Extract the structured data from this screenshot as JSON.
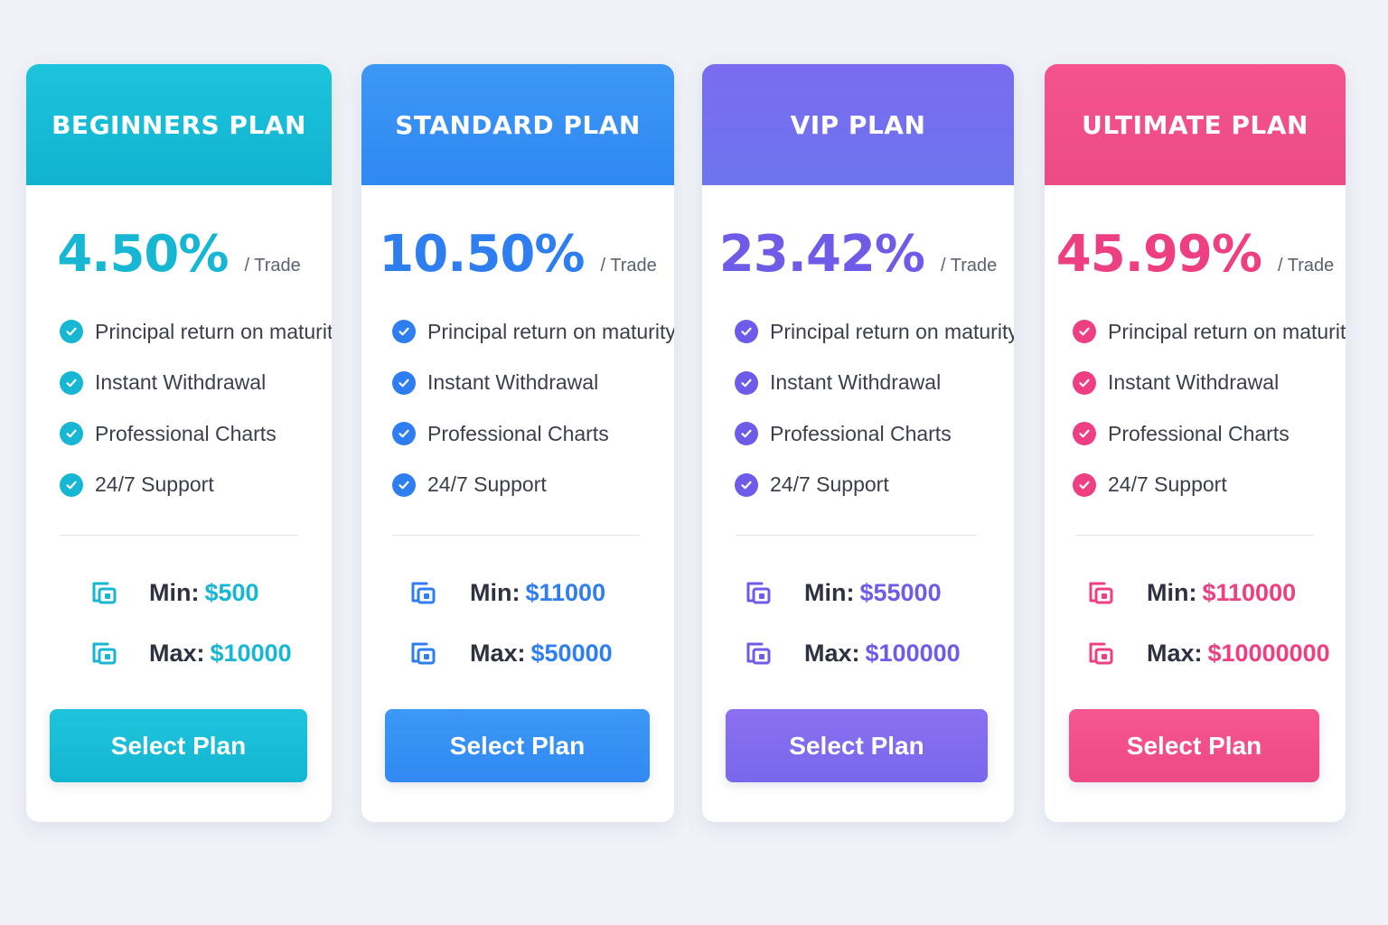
{
  "plans": [
    {
      "title": "BEGINNERS PLAN",
      "rate": "4.50%",
      "per": "/ Trade",
      "features": [
        "Principal return on maturity",
        "Instant Withdrawal",
        "Professional Charts",
        "24/7 Support"
      ],
      "min_label": "Min:",
      "min_value": "$500",
      "max_label": "Max:",
      "max_value": "$10000",
      "button_label": "Select Plan",
      "color": "#17b6d2",
      "header_gradient": [
        "#1cc4dc",
        "#11b3cf"
      ],
      "check_icon": "check-circle-icon",
      "limit_icon": "wallet-icon"
    },
    {
      "title": "STANDARD PLAN",
      "rate": "10.50%",
      "per": "/ Trade",
      "features": [
        "Principal return on maturity",
        "Instant Withdrawal",
        "Professional Charts",
        "24/7 Support"
      ],
      "min_label": "Min:",
      "min_value": "$11000",
      "max_label": "Max:",
      "max_value": "$50000",
      "button_label": "Select Plan",
      "color": "#2f7ef0",
      "header_gradient": [
        "#3d97f5",
        "#3088f2"
      ],
      "check_icon": "check-circle-icon",
      "limit_icon": "wallet-icon"
    },
    {
      "title": "VIP PLAN",
      "rate": "23.42%",
      "per": "/ Trade",
      "features": [
        "Principal return on maturity",
        "Instant Withdrawal",
        "Professional Charts",
        "24/7 Support"
      ],
      "min_label": "Min:",
      "min_value": "$55000",
      "max_label": "Max:",
      "max_value": "$100000",
      "button_label": "Select Plan",
      "color": "#6e5be8",
      "header_gradient": [
        "#7a6cf0",
        "#6d74ee"
      ],
      "check_icon": "check-circle-icon",
      "limit_icon": "wallet-icon"
    },
    {
      "title": "ULTIMATE PLAN",
      "rate": "45.99%",
      "per": "/ Trade",
      "features": [
        "Principal return on maturity",
        "Instant Withdrawal",
        "Professional Charts",
        "24/7 Support"
      ],
      "min_label": "Min:",
      "min_value": "$110000",
      "max_label": "Max:",
      "max_value": "$10000000",
      "button_label": "Select Plan",
      "color": "#ee3f82",
      "header_gradient": [
        "#f4538e",
        "#ec4b86"
      ],
      "check_icon": "check-circle-icon",
      "limit_icon": "wallet-icon"
    }
  ]
}
